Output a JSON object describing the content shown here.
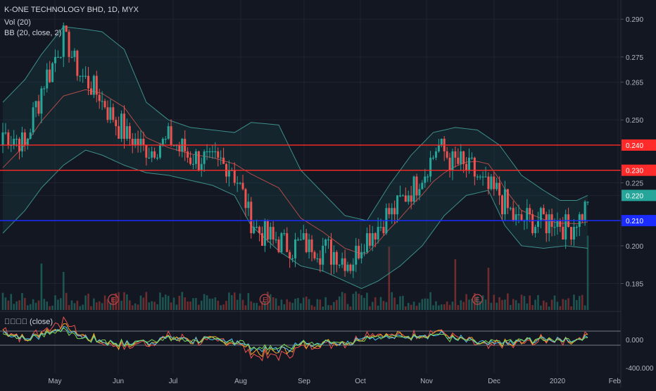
{
  "header": {
    "symbol_line": "K-ONE TECHNOLOGY BHD, 1D, MYX",
    "vol_label": "Vol (20)",
    "bb_label": "BB (20, close, 2)",
    "osc_label": "\u0000\u0000\u0000\u0000 (close)"
  },
  "colors": {
    "background": "#131722",
    "grid": "#1f2330",
    "up": "#26a69a",
    "down": "#ef5350",
    "bb_band": "#3d8f8a",
    "bb_basis": "#b04a4a",
    "res_line": "#ff2a2a",
    "sup_line": "#1a2cff",
    "last_price": "#26a69a"
  },
  "chart_data": {
    "type": "candlestick",
    "x_labels": [
      "May",
      "Jun",
      "Jul",
      "Aug",
      "Sep",
      "Oct",
      "Nov",
      "Dec",
      "2020",
      "Feb"
    ],
    "y_ticks": [
      "0.290",
      "0.275",
      "0.265",
      "0.250",
      "0.240",
      "0.225",
      "0.220",
      "0.210",
      "0.200",
      "0.185"
    ],
    "ylim": [
      0.1745,
      0.2965
    ],
    "horizontal_levels": [
      {
        "value": 0.24,
        "label": "0.240",
        "color": "#ff2a2a"
      },
      {
        "value": 0.23,
        "label": "0.230",
        "color": "#ff2a2a"
      },
      {
        "value": 0.21,
        "label": "0.210",
        "color": "#1a2cff"
      }
    ],
    "last_price": {
      "value": 0.22,
      "label": "0.220"
    },
    "close_anchors": [
      [
        0,
        0.245
      ],
      [
        8,
        0.24
      ],
      [
        14,
        0.262
      ],
      [
        22,
        0.283
      ],
      [
        28,
        0.268
      ],
      [
        36,
        0.258
      ],
      [
        44,
        0.245
      ],
      [
        52,
        0.238
      ],
      [
        60,
        0.242
      ],
      [
        68,
        0.236
      ],
      [
        76,
        0.233
      ],
      [
        82,
        0.233
      ],
      [
        86,
        0.223
      ],
      [
        90,
        0.21
      ],
      [
        96,
        0.203
      ],
      [
        104,
        0.2
      ],
      [
        112,
        0.2
      ],
      [
        120,
        0.197
      ],
      [
        126,
        0.193
      ],
      [
        130,
        0.2
      ],
      [
        134,
        0.207
      ],
      [
        140,
        0.212
      ],
      [
        146,
        0.22
      ],
      [
        152,
        0.228
      ],
      [
        158,
        0.24
      ],
      [
        164,
        0.233
      ],
      [
        170,
        0.23
      ],
      [
        176,
        0.222
      ],
      [
        180,
        0.22
      ],
      [
        186,
        0.21
      ],
      [
        194,
        0.21
      ],
      [
        200,
        0.21
      ],
      [
        205,
        0.207
      ],
      [
        208,
        0.21
      ],
      [
        210,
        0.212
      ],
      [
        212,
        0.22
      ]
    ],
    "bb_upper_anchors": [
      [
        0,
        0.257
      ],
      [
        8,
        0.266
      ],
      [
        14,
        0.276
      ],
      [
        22,
        0.287
      ],
      [
        30,
        0.286
      ],
      [
        36,
        0.285
      ],
      [
        44,
        0.278
      ],
      [
        52,
        0.257
      ],
      [
        60,
        0.25
      ],
      [
        68,
        0.247
      ],
      [
        76,
        0.246
      ],
      [
        84,
        0.245
      ],
      [
        90,
        0.249
      ],
      [
        100,
        0.248
      ],
      [
        108,
        0.23
      ],
      [
        116,
        0.221
      ],
      [
        124,
        0.212
      ],
      [
        132,
        0.21
      ],
      [
        140,
        0.224
      ],
      [
        148,
        0.236
      ],
      [
        156,
        0.245
      ],
      [
        164,
        0.247
      ],
      [
        172,
        0.246
      ],
      [
        180,
        0.24
      ],
      [
        188,
        0.228
      ],
      [
        196,
        0.222
      ],
      [
        202,
        0.218
      ],
      [
        208,
        0.218
      ],
      [
        212,
        0.22
      ]
    ],
    "bb_lower_anchors": [
      [
        0,
        0.205
      ],
      [
        8,
        0.214
      ],
      [
        14,
        0.223
      ],
      [
        22,
        0.232
      ],
      [
        30,
        0.238
      ],
      [
        36,
        0.236
      ],
      [
        44,
        0.232
      ],
      [
        52,
        0.229
      ],
      [
        60,
        0.228
      ],
      [
        68,
        0.226
      ],
      [
        76,
        0.224
      ],
      [
        84,
        0.22
      ],
      [
        90,
        0.208
      ],
      [
        100,
        0.198
      ],
      [
        108,
        0.192
      ],
      [
        116,
        0.19
      ],
      [
        124,
        0.186
      ],
      [
        130,
        0.183
      ],
      [
        136,
        0.186
      ],
      [
        144,
        0.192
      ],
      [
        152,
        0.2
      ],
      [
        160,
        0.212
      ],
      [
        168,
        0.22
      ],
      [
        176,
        0.222
      ],
      [
        182,
        0.208
      ],
      [
        188,
        0.2
      ],
      [
        196,
        0.199
      ],
      [
        204,
        0.2
      ],
      [
        212,
        0.199
      ]
    ],
    "volume_spikes": [
      [
        14,
        0.55
      ],
      [
        22,
        0.45
      ],
      [
        140,
        0.75
      ],
      [
        164,
        0.6
      ],
      [
        176,
        0.5
      ],
      [
        212,
        0.88
      ]
    ],
    "earnings_markers": [
      [
        40,
        "E"
      ],
      [
        95,
        "E"
      ],
      [
        172,
        "E"
      ]
    ],
    "osc_ticks": [
      "0.000",
      "-400.000"
    ]
  }
}
